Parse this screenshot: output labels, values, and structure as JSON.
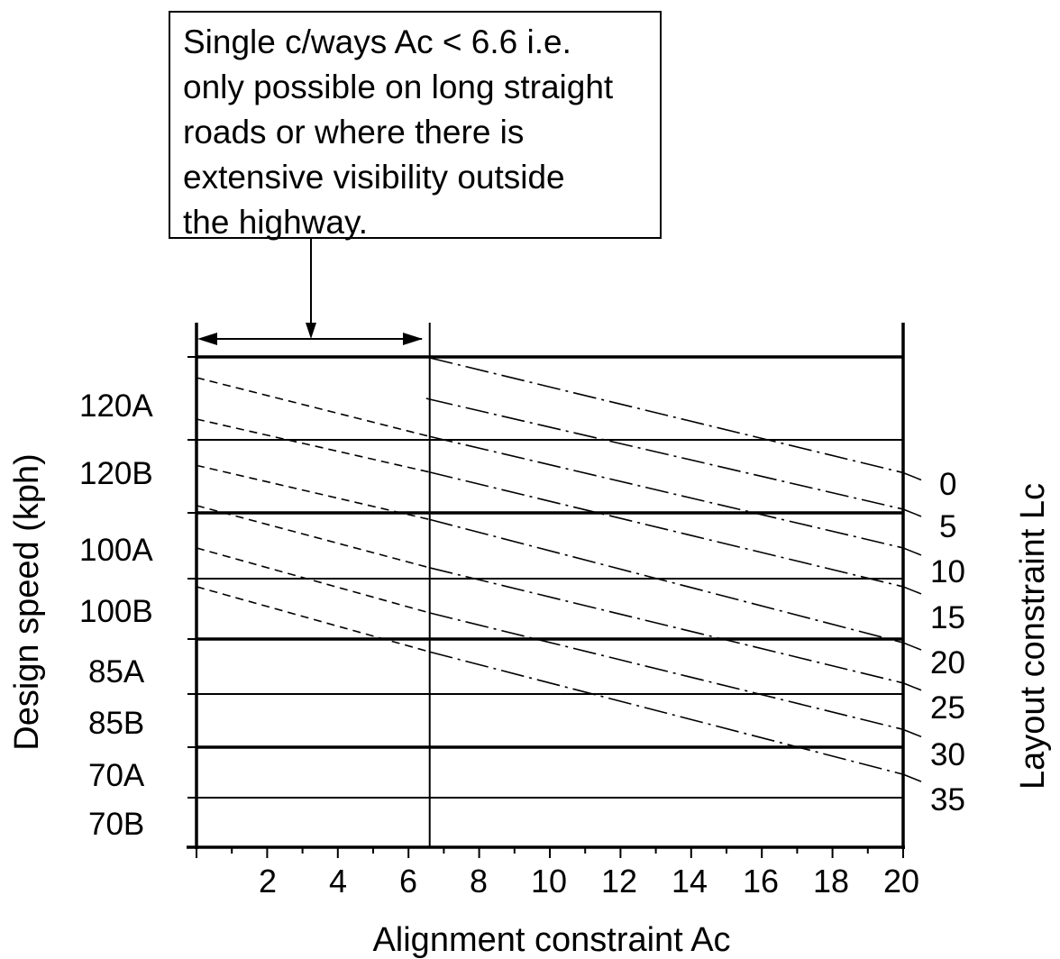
{
  "chart_data": {
    "type": "line",
    "title": "",
    "xlabel": "Alignment constraint Ac",
    "ylabel": "Design speed (kph)",
    "y2label": "Layout constraint Lc",
    "xlim": [
      0,
      20
    ],
    "x_ticks": [
      "2",
      "4",
      "6",
      "8",
      "10",
      "12",
      "14",
      "16",
      "18",
      "20"
    ],
    "speed_bands": [
      "120A",
      "120B",
      "100A",
      "100B",
      "85A",
      "85B",
      "70A",
      "70B"
    ],
    "layout_constraint_labels": [
      "0",
      "5",
      "10",
      "15",
      "20",
      "25",
      "30",
      "35"
    ],
    "single_carriageway_limit_ac": 6.6,
    "note": [
      "Single c/ways Ac < 6.6 i.e.",
      "only possible on long straight",
      "roads or where there is",
      "extensive visibility outside",
      "the highway."
    ],
    "series": [
      {
        "name": "0",
        "x": [
          6.5,
          20
        ],
        "y": [
          120.0,
          105.5
        ]
      },
      {
        "name": "5",
        "x": [
          6.5,
          20
        ],
        "y": [
          115.0,
          100.5
        ]
      },
      {
        "name": "10",
        "x": [
          0,
          20
        ],
        "y": [
          117.5,
          96.0
        ]
      },
      {
        "name": "15",
        "x": [
          0,
          20
        ],
        "y": [
          112.5,
          91.5
        ]
      },
      {
        "name": "20",
        "x": [
          0,
          20
        ],
        "y": [
          106.5,
          84.5
        ]
      },
      {
        "name": "25",
        "x": [
          0,
          20
        ],
        "y": [
          101.0,
          79.0
        ]
      },
      {
        "name": "30",
        "x": [
          0,
          20
        ],
        "y": [
          96.0,
          72.5
        ]
      },
      {
        "name": "35",
        "x": [
          0,
          20
        ],
        "y": [
          91.5,
          66.5
        ]
      }
    ]
  }
}
